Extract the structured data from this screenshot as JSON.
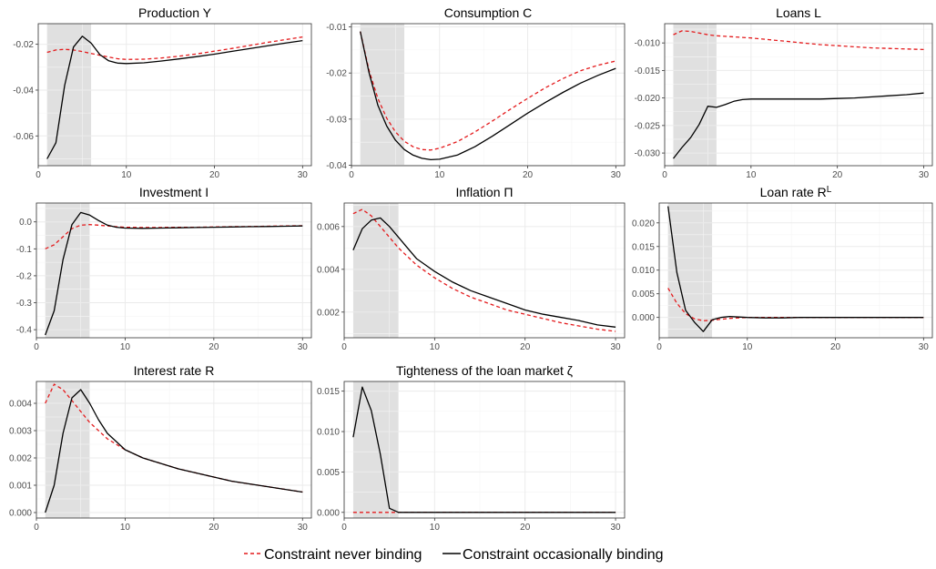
{
  "legend": {
    "never_label": "Constraint never binding",
    "occasional_label": "Constraint occasionally binding"
  },
  "colors": {
    "never": "#e41a1c",
    "occasional": "#000000",
    "shade": "#e0e0e0",
    "grid_major": "#ebebeb",
    "grid_minor": "#f5f5f5",
    "frame": "#333333"
  },
  "chart_data": [
    {
      "type": "line",
      "title": "Production Y",
      "xlim": [
        0,
        31
      ],
      "ylim": [
        -0.073,
        -0.011
      ],
      "xticks": [
        "0",
        "10",
        "20",
        "30"
      ],
      "yticks": [
        "-0.06",
        "-0.04",
        "-0.02"
      ],
      "shade": [
        1,
        6
      ],
      "x": [
        1,
        2,
        3,
        4,
        5,
        6,
        7,
        8,
        9,
        10,
        12,
        14,
        16,
        18,
        20,
        22,
        24,
        26,
        28,
        30
      ],
      "series": [
        {
          "name": "Constraint never binding",
          "style": "dashed",
          "values": [
            -0.0235,
            -0.0225,
            -0.0222,
            -0.0225,
            -0.0232,
            -0.024,
            -0.0248,
            -0.0256,
            -0.0263,
            -0.0266,
            -0.0265,
            -0.026,
            -0.0252,
            -0.0242,
            -0.023,
            -0.0218,
            -0.0205,
            -0.0192,
            -0.018,
            -0.0168
          ]
        },
        {
          "name": "Constraint occasionally binding",
          "style": "solid",
          "values": [
            -0.07,
            -0.063,
            -0.038,
            -0.0212,
            -0.0165,
            -0.0195,
            -0.0245,
            -0.0272,
            -0.0282,
            -0.0284,
            -0.0281,
            -0.0273,
            -0.0264,
            -0.0254,
            -0.0243,
            -0.0231,
            -0.0219,
            -0.0207,
            -0.0195,
            -0.0184
          ]
        }
      ]
    },
    {
      "type": "line",
      "title": "Consumption C",
      "xlim": [
        0,
        31
      ],
      "ylim": [
        -0.0401,
        -0.0093
      ],
      "xticks": [
        "0",
        "10",
        "20",
        "30"
      ],
      "yticks": [
        "-0.04",
        "-0.03",
        "-0.02",
        "-0.01"
      ],
      "shade": [
        1,
        6
      ],
      "x": [
        1,
        2,
        3,
        4,
        5,
        6,
        7,
        8,
        9,
        10,
        12,
        14,
        16,
        18,
        20,
        22,
        24,
        26,
        28,
        30
      ],
      "series": [
        {
          "name": "Constraint never binding",
          "style": "dashed",
          "values": [
            -0.011,
            -0.0195,
            -0.0255,
            -0.0298,
            -0.0328,
            -0.0348,
            -0.036,
            -0.0366,
            -0.0367,
            -0.0363,
            -0.0349,
            -0.0328,
            -0.0304,
            -0.0279,
            -0.0255,
            -0.0232,
            -0.0212,
            -0.0195,
            -0.0183,
            -0.0174
          ]
        },
        {
          "name": "Constraint occasionally binding",
          "style": "solid",
          "values": [
            -0.011,
            -0.02,
            -0.027,
            -0.0315,
            -0.0346,
            -0.0366,
            -0.0378,
            -0.0385,
            -0.0388,
            -0.0387,
            -0.0378,
            -0.036,
            -0.0337,
            -0.0312,
            -0.0287,
            -0.0264,
            -0.0242,
            -0.0222,
            -0.0205,
            -0.019
          ]
        }
      ]
    },
    {
      "type": "line",
      "title": "Loans L",
      "xlim": [
        0,
        31
      ],
      "ylim": [
        -0.0323,
        -0.0065
      ],
      "xticks": [
        "0",
        "10",
        "20",
        "30"
      ],
      "yticks": [
        "-0.030",
        "-0.025",
        "-0.020",
        "-0.015",
        "-0.010"
      ],
      "shade": [
        1,
        6
      ],
      "x": [
        1,
        2,
        3,
        4,
        5,
        6,
        7,
        8,
        9,
        10,
        12,
        14,
        16,
        18,
        20,
        22,
        24,
        26,
        28,
        30
      ],
      "series": [
        {
          "name": "Constraint never binding",
          "style": "dashed",
          "values": [
            -0.0085,
            -0.0078,
            -0.0079,
            -0.0082,
            -0.0085,
            -0.0087,
            -0.0088,
            -0.0089,
            -0.009,
            -0.0091,
            -0.0094,
            -0.0097,
            -0.01,
            -0.0103,
            -0.0105,
            -0.0107,
            -0.0109,
            -0.011,
            -0.0111,
            -0.0112
          ]
        },
        {
          "name": "Constraint occasionally binding",
          "style": "solid",
          "values": [
            -0.031,
            -0.029,
            -0.0272,
            -0.0248,
            -0.0215,
            -0.0217,
            -0.0212,
            -0.0206,
            -0.0203,
            -0.0202,
            -0.0202,
            -0.0202,
            -0.0202,
            -0.0202,
            -0.0201,
            -0.02,
            -0.0198,
            -0.0196,
            -0.0194,
            -0.0191
          ]
        }
      ]
    },
    {
      "type": "line",
      "title": "Investment I",
      "xlim": [
        0,
        31
      ],
      "ylim": [
        -0.43,
        0.07
      ],
      "xticks": [
        "0",
        "10",
        "20",
        "30"
      ],
      "yticks": [
        "-0.4",
        "-0.3",
        "-0.2",
        "-0.1",
        "0.0"
      ],
      "shade": [
        1,
        6
      ],
      "x": [
        1,
        2,
        3,
        4,
        5,
        6,
        7,
        8,
        9,
        10,
        12,
        14,
        16,
        18,
        20,
        22,
        24,
        26,
        28,
        30
      ],
      "series": [
        {
          "name": "Constraint never binding",
          "style": "dashed",
          "values": [
            -0.1,
            -0.085,
            -0.055,
            -0.025,
            -0.012,
            -0.01,
            -0.012,
            -0.015,
            -0.018,
            -0.02,
            -0.021,
            -0.021,
            -0.02,
            -0.02,
            -0.019,
            -0.018,
            -0.017,
            -0.016,
            -0.015,
            -0.014
          ]
        },
        {
          "name": "Constraint occasionally binding",
          "style": "solid",
          "values": [
            -0.42,
            -0.33,
            -0.14,
            -0.01,
            0.035,
            0.025,
            0.005,
            -0.012,
            -0.02,
            -0.023,
            -0.024,
            -0.023,
            -0.022,
            -0.021,
            -0.02,
            -0.019,
            -0.018,
            -0.017,
            -0.016,
            -0.015
          ]
        }
      ]
    },
    {
      "type": "line",
      "title": "Inflation Π",
      "xlim": [
        0,
        31
      ],
      "ylim": [
        0.0008,
        0.0071
      ],
      "xticks": [
        "0",
        "10",
        "20",
        "30"
      ],
      "yticks": [
        "0.002",
        "0.004",
        "0.006"
      ],
      "shade": [
        1,
        6
      ],
      "x": [
        1,
        2,
        3,
        4,
        5,
        6,
        7,
        8,
        9,
        10,
        12,
        14,
        16,
        18,
        20,
        22,
        24,
        26,
        28,
        30
      ],
      "series": [
        {
          "name": "Constraint never binding",
          "style": "dashed",
          "values": [
            0.0066,
            0.0068,
            0.0065,
            0.006,
            0.0055,
            0.005,
            0.0046,
            0.0042,
            0.0039,
            0.0036,
            0.0031,
            0.0027,
            0.0024,
            0.0021,
            0.0019,
            0.0017,
            0.0015,
            0.00135,
            0.0012,
            0.0011
          ]
        },
        {
          "name": "Constraint occasionally binding",
          "style": "solid",
          "values": [
            0.0049,
            0.0059,
            0.0063,
            0.0064,
            0.006,
            0.0055,
            0.005,
            0.0045,
            0.0042,
            0.0039,
            0.0034,
            0.003,
            0.0027,
            0.0024,
            0.0021,
            0.0019,
            0.00175,
            0.0016,
            0.0014,
            0.0013
          ]
        }
      ]
    },
    {
      "type": "line",
      "title": "Loan rate R",
      "title_sup": "L",
      "xlim": [
        0,
        31
      ],
      "ylim": [
        -0.0043,
        0.0242
      ],
      "xticks": [
        "0",
        "10",
        "20",
        "30"
      ],
      "yticks": [
        "0.000",
        "0.005",
        "0.010",
        "0.015",
        "0.020"
      ],
      "shade": [
        1,
        6
      ],
      "x": [
        1,
        2,
        3,
        4,
        5,
        6,
        7,
        8,
        9,
        10,
        12,
        14,
        16,
        18,
        20,
        22,
        24,
        26,
        28,
        30
      ],
      "series": [
        {
          "name": "Constraint never binding",
          "style": "dashed",
          "values": [
            0.0062,
            0.003,
            0.0008,
            -0.0003,
            -0.0007,
            -0.0006,
            -0.0004,
            -0.0002,
            -0.0001,
            0.0,
            0.0,
            0.0,
            0.0,
            0.0,
            0.0,
            0.0,
            0.0,
            0.0,
            0.0,
            0.0
          ]
        },
        {
          "name": "Constraint occasionally binding",
          "style": "solid",
          "values": [
            0.0235,
            0.0095,
            0.0015,
            -0.001,
            -0.003,
            -0.0005,
            0.0,
            0.0002,
            0.0001,
            0.0,
            -0.0001,
            -0.0001,
            0.0,
            0.0,
            0.0,
            0.0,
            0.0,
            0.0,
            0.0,
            0.0
          ]
        }
      ]
    },
    {
      "type": "line",
      "title": "Interest rate R",
      "xlim": [
        0,
        31
      ],
      "ylim": [
        -0.0002,
        0.0048
      ],
      "xticks": [
        "0",
        "10",
        "20",
        "30"
      ],
      "yticks": [
        "0.000",
        "0.001",
        "0.002",
        "0.003",
        "0.004"
      ],
      "shade": [
        1,
        6
      ],
      "x": [
        1,
        2,
        3,
        4,
        5,
        6,
        7,
        8,
        9,
        10,
        12,
        14,
        16,
        18,
        20,
        22,
        24,
        26,
        28,
        30
      ],
      "series": [
        {
          "name": "Constraint never binding",
          "style": "dashed",
          "values": [
            0.004,
            0.0047,
            0.0045,
            0.0041,
            0.0037,
            0.0033,
            0.003,
            0.0027,
            0.0025,
            0.0023,
            0.002,
            0.0018,
            0.0016,
            0.00145,
            0.0013,
            0.00115,
            0.00105,
            0.00095,
            0.00085,
            0.00075
          ]
        },
        {
          "name": "Constraint occasionally binding",
          "style": "solid",
          "values": [
            0.0,
            0.001,
            0.0029,
            0.0042,
            0.0045,
            0.004,
            0.0034,
            0.0029,
            0.0026,
            0.0023,
            0.002,
            0.0018,
            0.0016,
            0.00145,
            0.0013,
            0.00115,
            0.00105,
            0.00095,
            0.00085,
            0.00075
          ]
        }
      ]
    },
    {
      "type": "line",
      "title": "Tighteness of the loan market ζ",
      "xlim": [
        0,
        31
      ],
      "ylim": [
        -0.0007,
        0.0162
      ],
      "xticks": [
        "0",
        "10",
        "20",
        "30"
      ],
      "yticks": [
        "0.000",
        "0.005",
        "0.010",
        "0.015"
      ],
      "shade": [
        1,
        6
      ],
      "x": [
        1,
        2,
        3,
        4,
        5,
        6,
        7,
        8,
        9,
        10,
        12,
        14,
        16,
        18,
        20,
        22,
        24,
        26,
        28,
        30
      ],
      "series": [
        {
          "name": "Constraint never binding",
          "style": "dashed",
          "values": [
            0.0,
            0.0,
            0.0,
            0.0,
            0.0,
            0.0,
            0.0,
            0.0,
            0.0,
            0.0,
            0.0,
            0.0,
            0.0,
            0.0,
            0.0,
            0.0,
            0.0,
            0.0,
            0.0,
            0.0
          ]
        },
        {
          "name": "Constraint occasionally binding",
          "style": "solid",
          "values": [
            0.0093,
            0.0155,
            0.0126,
            0.0072,
            0.0005,
            0.0,
            0.0,
            0.0,
            0.0,
            0.0,
            0.0,
            0.0,
            0.0,
            0.0,
            0.0,
            0.0,
            0.0,
            0.0,
            0.0,
            0.0
          ]
        }
      ]
    }
  ]
}
